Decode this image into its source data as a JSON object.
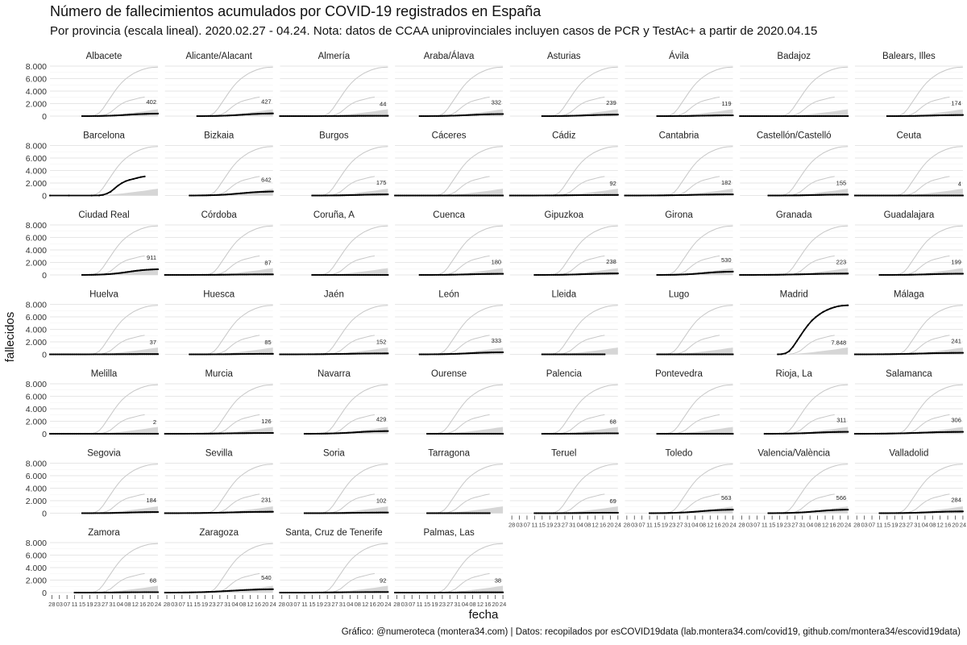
{
  "header": {
    "title": "Número de fallecimientos acumulados por COVID-19 registrados en España",
    "subtitle": "Por provincia (escala lineal). 2020.02.27 - 04.24. Nota: datos de CCAA uniprovinciales incluyen casos de PCR y TestAc+ a partir de 2020.04.15"
  },
  "footer": {
    "caption": "Gráfico: @numeroteca (montera34.com) | Datos: recopilados por esCOVID19data (lab.montera34.com/covid19, github.com/montera34/escovid19data)"
  },
  "chart_data": {
    "type": "line",
    "facet": true,
    "xlabel": "fecha",
    "ylabel": "fallecidos",
    "ylim": [
      0,
      8000
    ],
    "y_ticks": [
      "0",
      "2.000",
      "4.000",
      "6.000",
      "8.000"
    ],
    "y_tick_values": [
      0,
      2000,
      4000,
      6000,
      8000
    ],
    "x_range": [
      "2020-02-27",
      "2020-04-24"
    ],
    "x_ticks": [
      "28",
      "03",
      "07",
      "11",
      "15",
      "19",
      "23",
      "27",
      "31",
      "04",
      "08",
      "12",
      "16",
      "20",
      "24"
    ],
    "x_tick_day_offsets": [
      1,
      5,
      9,
      13,
      17,
      21,
      25,
      29,
      33,
      37,
      41,
      45,
      49,
      53,
      57
    ],
    "grid": true,
    "colors": {
      "highlight": "#000000",
      "background_lines": "#c8c8c8",
      "grid": "#e6e6e6"
    },
    "background_series_note": "each panel repeats all provinces in grey; the panel's own province is drawn in black",
    "background_reference": {
      "madrid_upper": [
        [
          20,
          5
        ],
        [
          22,
          30
        ],
        [
          24,
          150
        ],
        [
          26,
          500
        ],
        [
          28,
          1200
        ],
        [
          30,
          2100
        ],
        [
          32,
          3000
        ],
        [
          34,
          3900
        ],
        [
          36,
          4700
        ],
        [
          38,
          5400
        ],
        [
          40,
          5950
        ],
        [
          42,
          6400
        ],
        [
          44,
          6800
        ],
        [
          46,
          7100
        ],
        [
          48,
          7350
        ],
        [
          50,
          7550
        ],
        [
          52,
          7700
        ],
        [
          54,
          7790
        ],
        [
          57,
          7848
        ]
      ],
      "barcelona_mid": [
        [
          26,
          20
        ],
        [
          28,
          100
        ],
        [
          30,
          300
        ],
        [
          32,
          600
        ],
        [
          34,
          1100
        ],
        [
          36,
          1600
        ],
        [
          38,
          2000
        ],
        [
          40,
          2300
        ],
        [
          42,
          2500
        ],
        [
          44,
          2650
        ],
        [
          46,
          2800
        ],
        [
          48,
          2950
        ],
        [
          50,
          3050
        ]
      ],
      "band_top": 1100
    },
    "panels": [
      {
        "name": "Albacete",
        "final": 402,
        "label": "402",
        "start": 17,
        "end": 57
      },
      {
        "name": "Alicante/Alacant",
        "final": 427,
        "label": "427",
        "start": 17,
        "end": 57
      },
      {
        "name": "Almería",
        "final": 44,
        "label": "44",
        "start": 0,
        "end": 57
      },
      {
        "name": "Araba/Álava",
        "final": 332,
        "label": "332",
        "start": 13,
        "end": 57
      },
      {
        "name": "Asturias",
        "final": 239,
        "label": "239",
        "start": 17,
        "end": 57
      },
      {
        "name": "Ávila",
        "final": 119,
        "label": "119",
        "start": 17,
        "end": 57
      },
      {
        "name": "Badajoz",
        "final": 0,
        "label": "",
        "start": 0,
        "end": 57
      },
      {
        "name": "Balears, Illes",
        "final": 174,
        "label": "174",
        "start": 17,
        "end": 57
      },
      {
        "name": "Barcelona",
        "final": 3050,
        "label": "",
        "start": 0,
        "end": 50
      },
      {
        "name": "Bizkaia",
        "final": 642,
        "label": "642",
        "start": 13,
        "end": 57
      },
      {
        "name": "Burgos",
        "final": 175,
        "label": "175",
        "start": 17,
        "end": 57
      },
      {
        "name": "Cáceres",
        "final": 0,
        "label": "",
        "start": 0,
        "end": 57
      },
      {
        "name": "Cádiz",
        "final": 92,
        "label": "92",
        "start": 0,
        "end": 57
      },
      {
        "name": "Cantabria",
        "final": 182,
        "label": "182",
        "start": 0,
        "end": 57
      },
      {
        "name": "Castellón/Castelló",
        "final": 155,
        "label": "155",
        "start": 15,
        "end": 57
      },
      {
        "name": "Ceuta",
        "final": 4,
        "label": "4",
        "start": 0,
        "end": 57
      },
      {
        "name": "Ciudad Real",
        "final": 911,
        "label": "911",
        "start": 17,
        "end": 57
      },
      {
        "name": "Córdoba",
        "final": 87,
        "label": "87",
        "start": 0,
        "end": 57
      },
      {
        "name": "Coruña, A",
        "final": 0,
        "label": "",
        "start": 17,
        "end": 57
      },
      {
        "name": "Cuenca",
        "final": 180,
        "label": "180",
        "start": 13,
        "end": 57
      },
      {
        "name": "Gipuzkoa",
        "final": 238,
        "label": "238",
        "start": 13,
        "end": 57
      },
      {
        "name": "Girona",
        "final": 530,
        "label": "530",
        "start": 17,
        "end": 57
      },
      {
        "name": "Granada",
        "final": 223,
        "label": "223",
        "start": 0,
        "end": 57
      },
      {
        "name": "Guadalajara",
        "final": 199,
        "label": "199",
        "start": 13,
        "end": 57
      },
      {
        "name": "Huelva",
        "final": 37,
        "label": "37",
        "start": 0,
        "end": 57
      },
      {
        "name": "Huesca",
        "final": 85,
        "label": "85",
        "start": 13,
        "end": 57
      },
      {
        "name": "Jaén",
        "final": 152,
        "label": "152",
        "start": 0,
        "end": 57
      },
      {
        "name": "León",
        "final": 333,
        "label": "333",
        "start": 13,
        "end": 57
      },
      {
        "name": "Lleida",
        "final": 0,
        "label": "",
        "start": 17,
        "end": 50
      },
      {
        "name": "Lugo",
        "final": 0,
        "label": "",
        "start": 17,
        "end": 57
      },
      {
        "name": "Madrid",
        "final": 7848,
        "label": "7.848",
        "start": 17,
        "end": 57
      },
      {
        "name": "Málaga",
        "final": 241,
        "label": "241",
        "start": 0,
        "end": 57
      },
      {
        "name": "Melilla",
        "final": 2,
        "label": "2",
        "start": 0,
        "end": 57
      },
      {
        "name": "Murcia",
        "final": 126,
        "label": "126",
        "start": 0,
        "end": 57
      },
      {
        "name": "Navarra",
        "final": 429,
        "label": "429",
        "start": 13,
        "end": 57
      },
      {
        "name": "Ourense",
        "final": 0,
        "label": "",
        "start": 17,
        "end": 57
      },
      {
        "name": "Palencia",
        "final": 68,
        "label": "68",
        "start": 17,
        "end": 57
      },
      {
        "name": "Pontevedra",
        "final": 0,
        "label": "",
        "start": 17,
        "end": 57
      },
      {
        "name": "Rioja, La",
        "final": 311,
        "label": "311",
        "start": 13,
        "end": 57
      },
      {
        "name": "Salamanca",
        "final": 306,
        "label": "306",
        "start": 0,
        "end": 57
      },
      {
        "name": "Segovia",
        "final": 184,
        "label": "184",
        "start": 17,
        "end": 57
      },
      {
        "name": "Sevilla",
        "final": 231,
        "label": "231",
        "start": 0,
        "end": 57
      },
      {
        "name": "Soria",
        "final": 102,
        "label": "102",
        "start": 13,
        "end": 57
      },
      {
        "name": "Tarragona",
        "final": 0,
        "label": "",
        "start": 17,
        "end": 50
      },
      {
        "name": "Teruel",
        "final": 69,
        "label": "69",
        "start": 13,
        "end": 57
      },
      {
        "name": "Toledo",
        "final": 563,
        "label": "563",
        "start": 13,
        "end": 57
      },
      {
        "name": "Valencia/València",
        "final": 566,
        "label": "566",
        "start": 15,
        "end": 57
      },
      {
        "name": "Valladolid",
        "final": 284,
        "label": "284",
        "start": 13,
        "end": 57
      },
      {
        "name": "Zamora",
        "final": 68,
        "label": "68",
        "start": 13,
        "end": 57
      },
      {
        "name": "Zaragoza",
        "final": 540,
        "label": "540",
        "start": 0,
        "end": 57
      },
      {
        "name": "Santa, Cruz de Tenerife",
        "final": 92,
        "label": "92",
        "start": 0,
        "end": 57
      },
      {
        "name": "Palmas, Las",
        "final": 38,
        "label": "38",
        "start": 0,
        "end": 57
      }
    ]
  }
}
